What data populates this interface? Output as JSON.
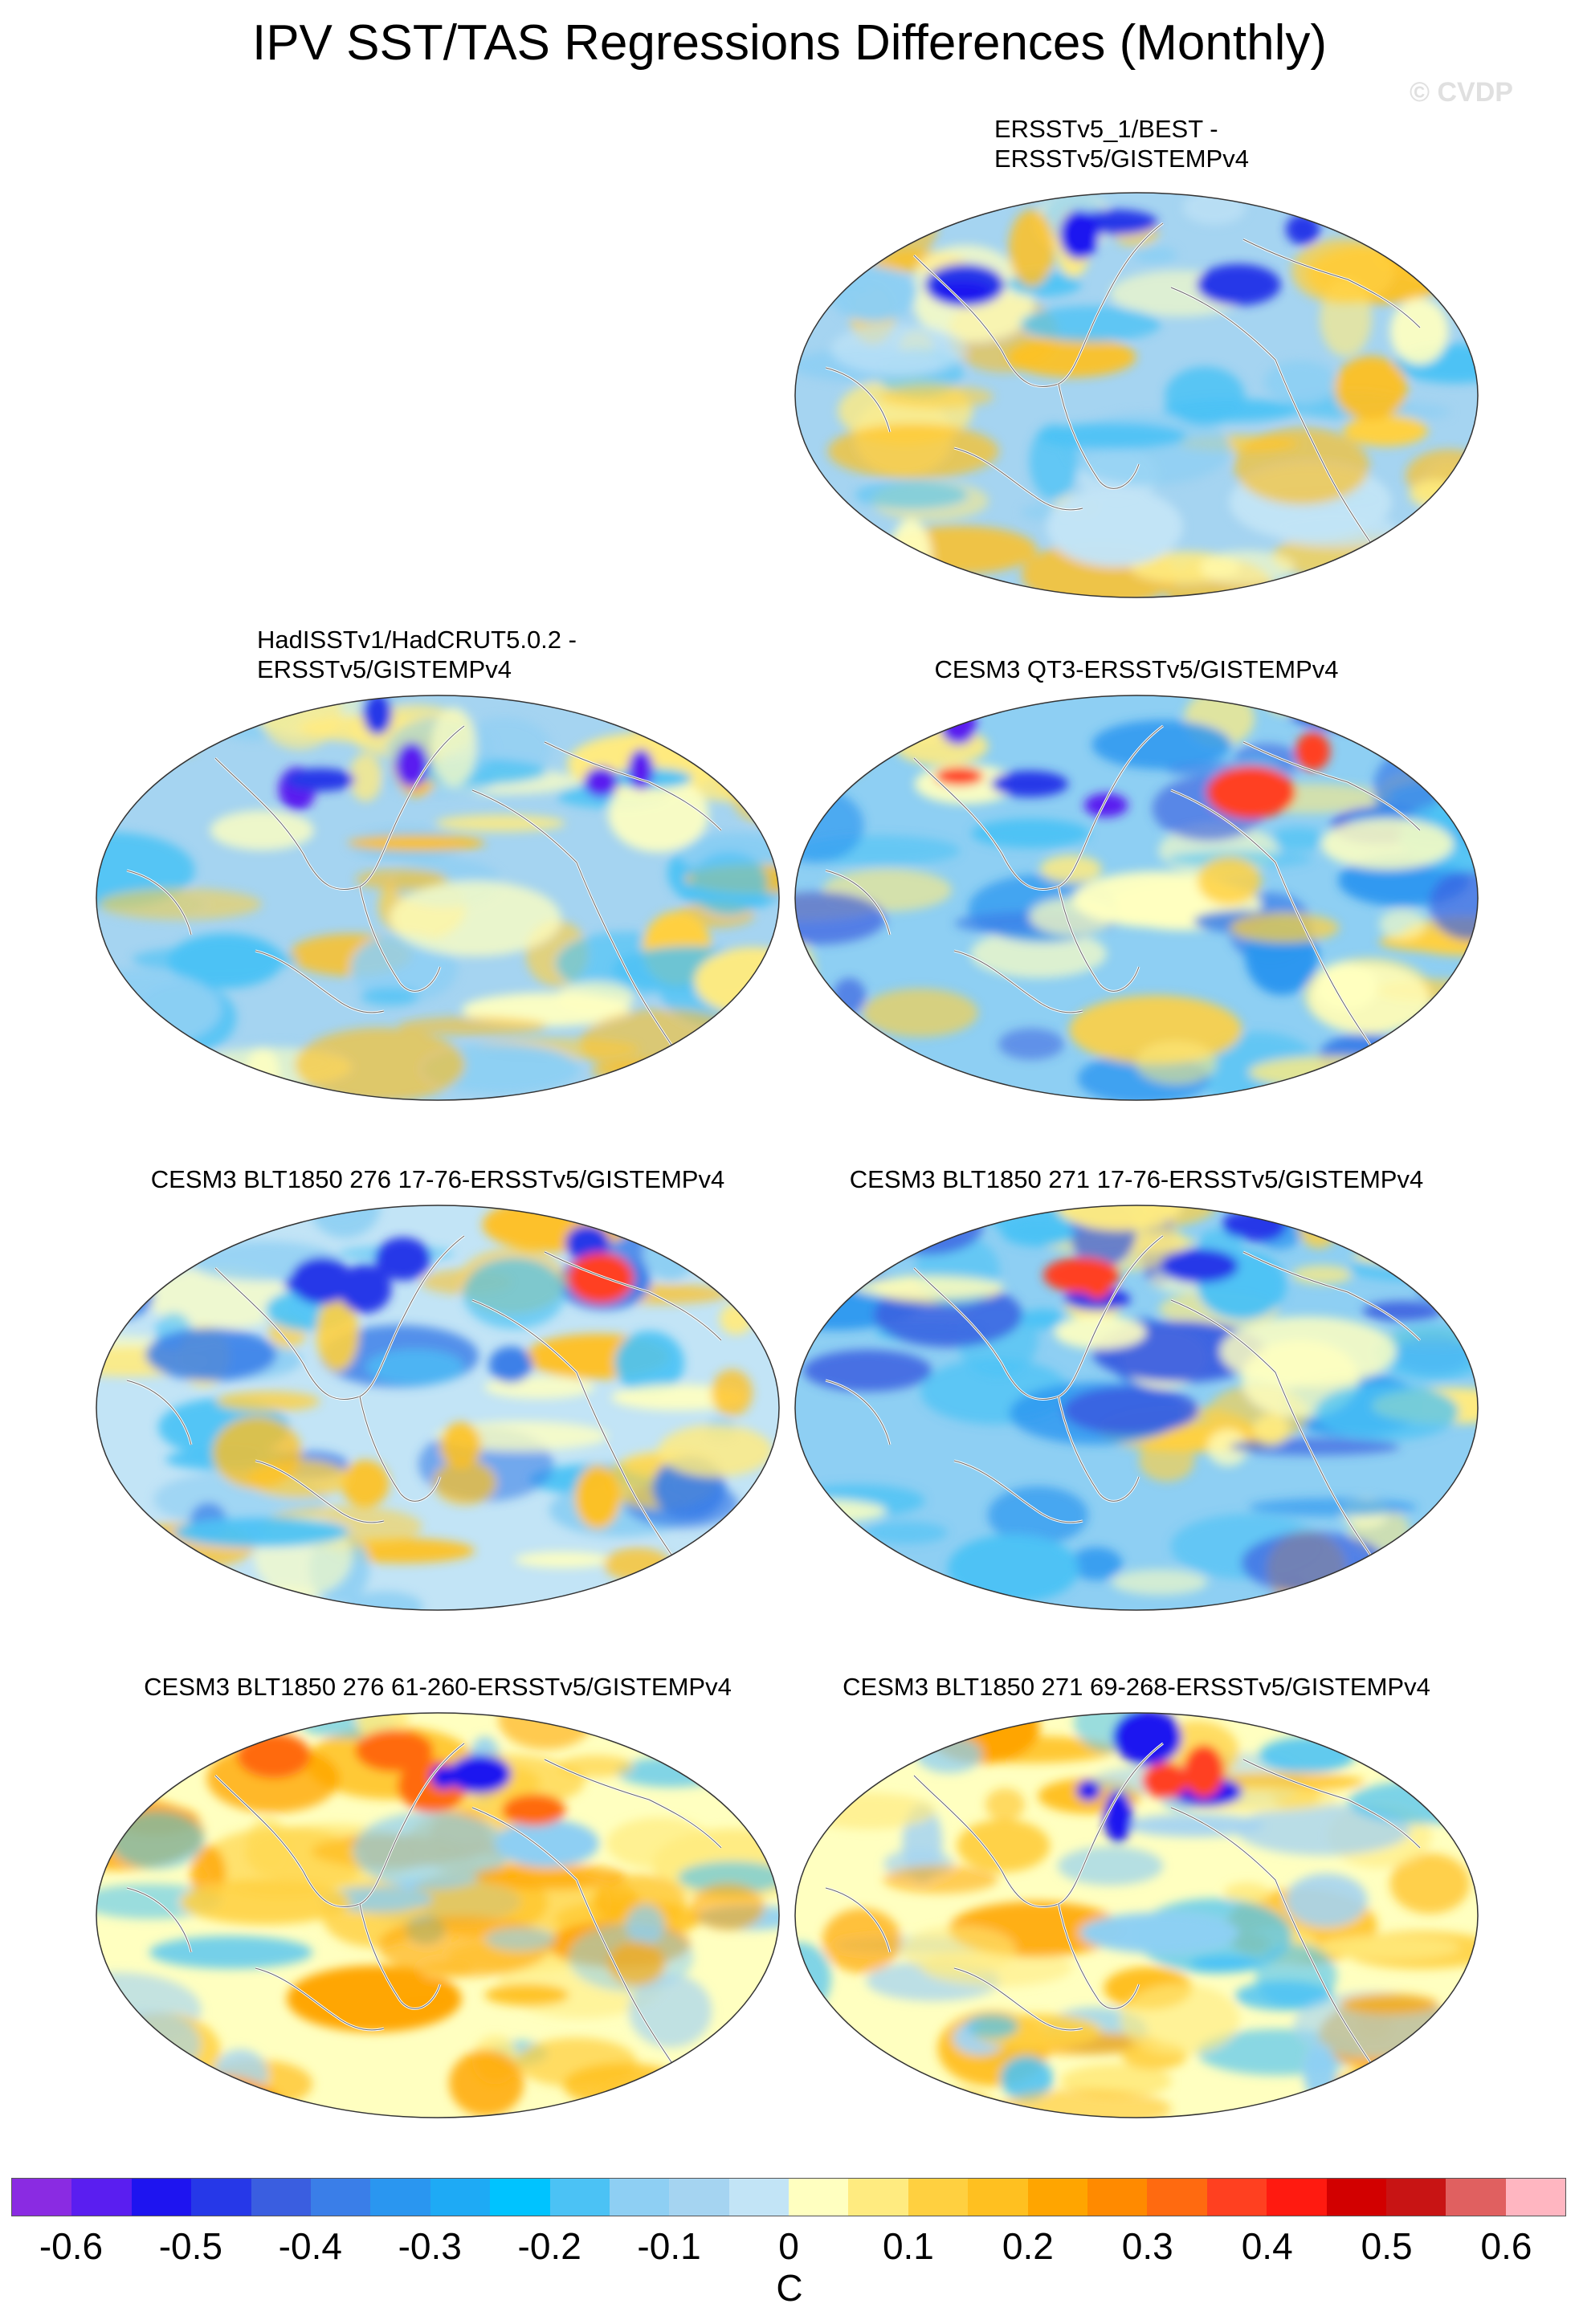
{
  "title": "IPV SST/TAS Regressions Differences (Monthly)",
  "watermark": "© CVDP",
  "panels": [
    {
      "label_lines": [
        "ERSSTv5_1/BEST -",
        "ERSSTv5/GISTEMPv4"
      ],
      "pattern": "mild"
    },
    {
      "label_lines": [
        "HadISSTv1/HadCRUT5.0.2 -",
        "ERSSTv5/GISTEMPv4"
      ],
      "pattern": "masked"
    },
    {
      "label_lines": [
        "CESM3 QT3-ERSSTv5/GISTEMPv4"
      ],
      "pattern": "cold"
    },
    {
      "label_lines": [
        "CESM3 BLT1850 276 17-76-ERSSTv5/GISTEMPv4"
      ],
      "pattern": "mixed"
    },
    {
      "label_lines": [
        "CESM3 BLT1850 271 17-76-ERSSTv5/GISTEMPv4"
      ],
      "pattern": "cold"
    },
    {
      "label_lines": [
        "CESM3 BLT1850 276 61-260-ERSSTv5/GISTEMPv4"
      ],
      "pattern": "warm"
    },
    {
      "label_lines": [
        "CESM3 BLT1850 271 69-268-ERSSTv5/GISTEMPv4"
      ],
      "pattern": "warm"
    }
  ],
  "colorbar": {
    "units": "C",
    "tick_labels": [
      "-0.6",
      "-0.5",
      "-0.4",
      "-0.3",
      "-0.2",
      "-0.1",
      "0",
      "0.1",
      "0.2",
      "0.3",
      "0.4",
      "0.5",
      "0.6"
    ],
    "colors": [
      "#8a2be2",
      "#5a1ef0",
      "#1e14f0",
      "#2638e8",
      "#3a5ee0",
      "#3a7ee8",
      "#2a96f0",
      "#1eaaf5",
      "#00c3ff",
      "#4bc2f5",
      "#8ecff3",
      "#a5d4f1",
      "#c2e4f6",
      "#ffffc0",
      "#ffeb80",
      "#ffd040",
      "#ffc020",
      "#ffa500",
      "#ff8a00",
      "#ff6a10",
      "#ff4020",
      "#ff1a10",
      "#d20000",
      "#c81414",
      "#e06060",
      "#ffb6c1"
    ]
  }
}
